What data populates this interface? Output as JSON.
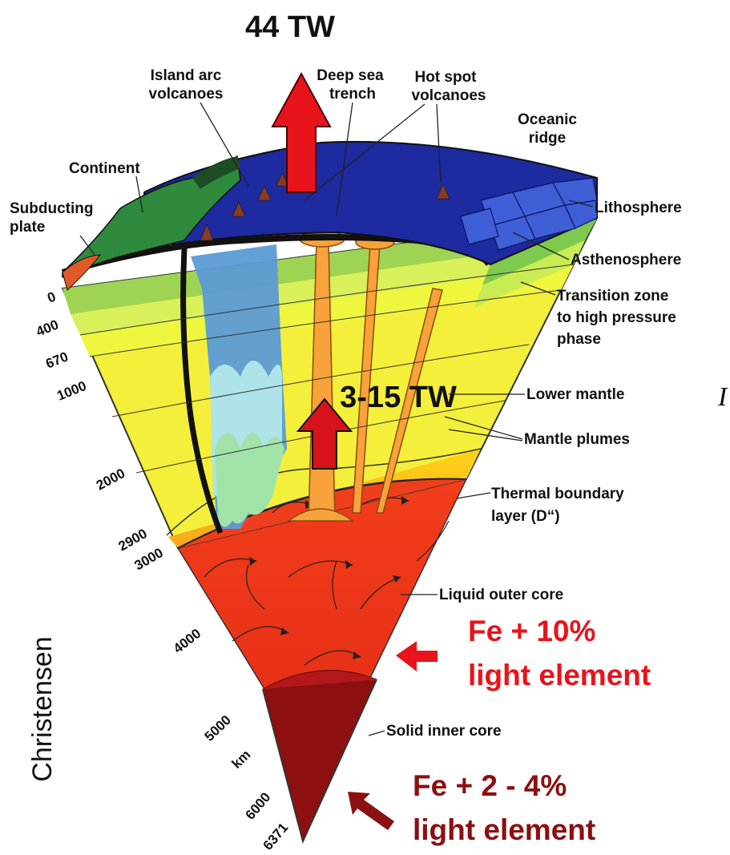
{
  "title_heat": "44 TW",
  "core_heat": "3-15 TW",
  "credit": "Christensen",
  "edge_glyph": "I",
  "surface_labels": {
    "island_arc": [
      "Island arc",
      "volcanoes"
    ],
    "trench": [
      "Deep sea",
      "trench"
    ],
    "hot_spot": [
      "Hot spot",
      "volcanoes"
    ],
    "ridge": [
      "Oceanic",
      "ridge"
    ],
    "continent": "Continent",
    "subducting": [
      "Subducting",
      "plate"
    ]
  },
  "layer_labels": {
    "lithosphere": "Lithosphere",
    "asthenosphere": "Asthenosphere",
    "transition": [
      "Transition zone",
      "to high pressure",
      "phase"
    ],
    "lower_mantle": "Lower mantle",
    "plumes": "Mantle plumes",
    "thermal": [
      "Thermal boundary",
      "layer (D“)"
    ],
    "outer_core": "Liquid outer core",
    "inner_core": "Solid inner core"
  },
  "depths": [
    "0",
    "400",
    "670",
    "1000",
    "2000",
    "2900",
    "3000",
    "4000",
    "5000",
    "km",
    "6000",
    "6371"
  ],
  "outer_core_comp": [
    "Fe + 10%",
    "light element"
  ],
  "inner_core_comp": [
    "Fe  + 2 - 4%",
    "light element"
  ],
  "colors": {
    "ocean": "#1d2aa0",
    "upper_mantle": "#f4ef3a",
    "outer_core": "#f0401c",
    "inner_core": "#8e0f10",
    "arrow_red": "#e8141b",
    "arrow_dark": "#8b1011"
  }
}
